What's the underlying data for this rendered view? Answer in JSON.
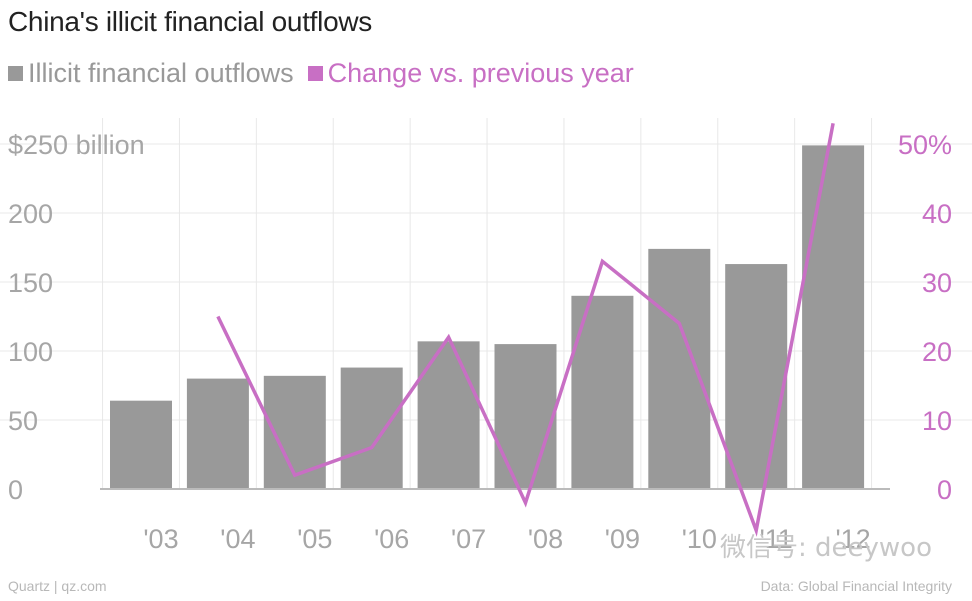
{
  "title": "China's illicit financial outflows",
  "legend": {
    "outflows": "Illicit financial outflows",
    "change": "Change vs. previous year"
  },
  "colors": {
    "bar": "#999999",
    "line": "#c86fc4",
    "left_axis_text": "#a6a6a6",
    "right_axis_text": "#c86fc4",
    "grid": "#e8e8e8",
    "baseline": "#bbbbbb"
  },
  "footer": {
    "source_left": "Quartz | qz.com",
    "source_right": "Data: Global Financial Integrity",
    "watermark": "微信号: deeywoo"
  },
  "chart_data": {
    "type": "bar",
    "categories": [
      "'03",
      "'04",
      "'05",
      "'06",
      "'07",
      "'08",
      "'09",
      "'10",
      "'11",
      "'12"
    ],
    "series": [
      {
        "name": "Illicit financial outflows",
        "type": "bar",
        "axis": "left",
        "values": [
          64,
          80,
          82,
          88,
          107,
          105,
          140,
          174,
          163,
          249
        ]
      },
      {
        "name": "Change vs. previous year",
        "type": "line",
        "axis": "right",
        "values": [
          null,
          25,
          2,
          6,
          22,
          -2,
          33,
          24,
          -6,
          53
        ]
      }
    ],
    "left_axis": {
      "ticks": [
        0,
        50,
        100,
        150,
        200,
        250
      ],
      "tick_labels": [
        "0",
        "50",
        "100",
        "150",
        "200",
        "$250 billion"
      ],
      "ylim": [
        0,
        250
      ]
    },
    "right_axis": {
      "ticks": [
        0,
        10,
        20,
        30,
        40,
        50
      ],
      "tick_labels": [
        "0",
        "10",
        "20",
        "30",
        "40",
        "50%"
      ],
      "ylim": [
        0,
        50
      ]
    },
    "grid": true
  }
}
